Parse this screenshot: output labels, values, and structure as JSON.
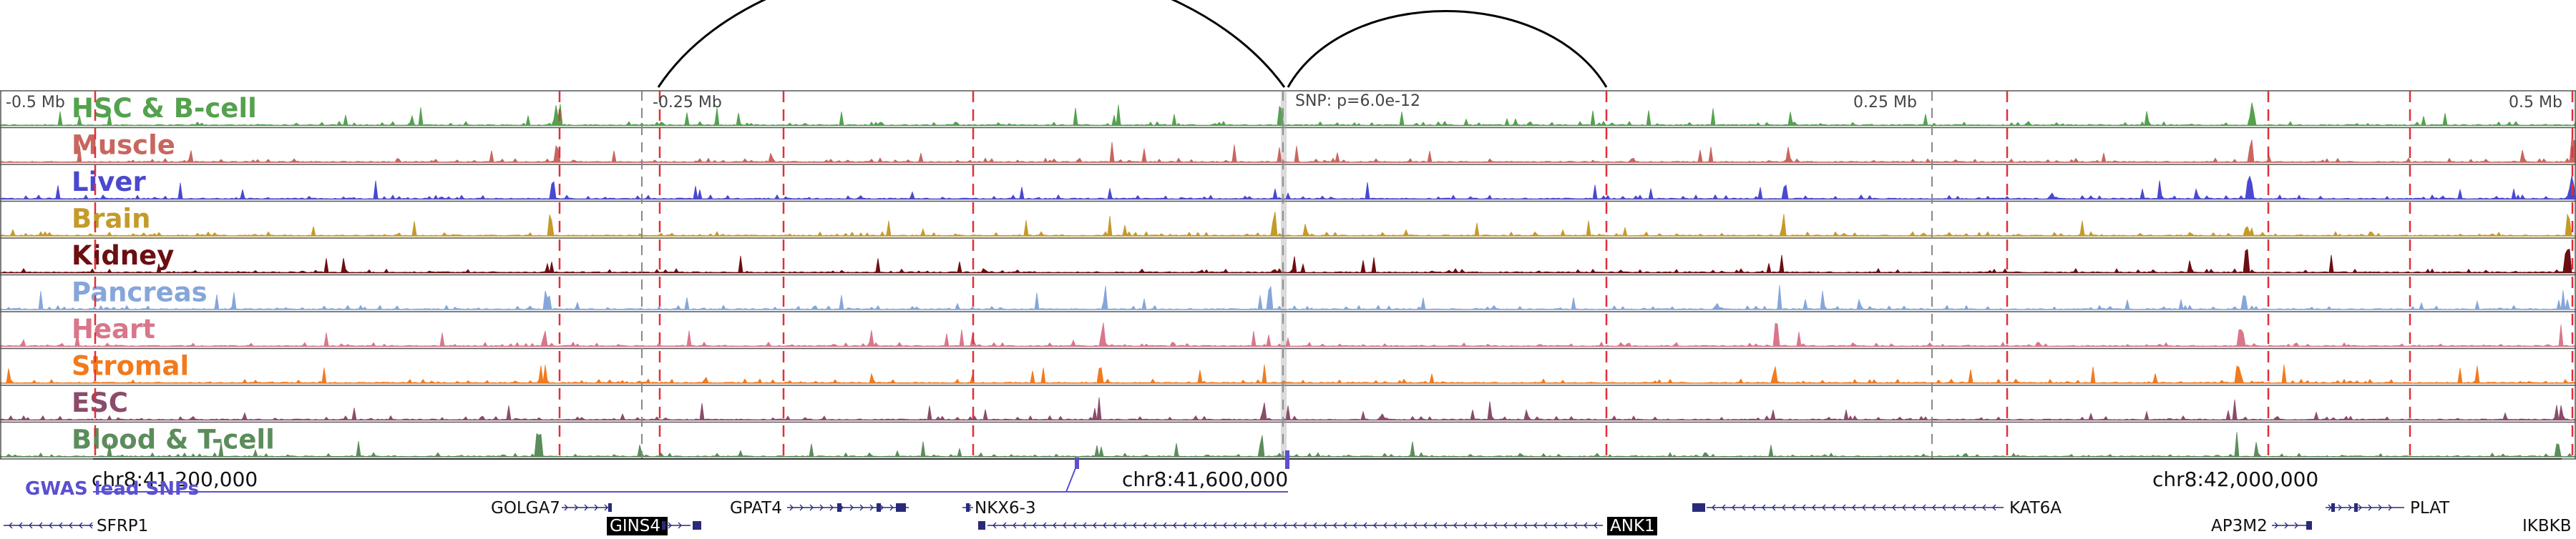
{
  "scale": {
    "labels": [
      "-0.5 Mb",
      "-0.25 Mb",
      "0.25 Mb",
      "0.5 Mb"
    ],
    "snp_label": "SNP: p=6.0e-12"
  },
  "tracks": [
    {
      "name": "HSC & B-cell",
      "color": "#54a14e"
    },
    {
      "name": "Muscle",
      "color": "#c8665e"
    },
    {
      "name": "Liver",
      "color": "#4a48d0"
    },
    {
      "name": "Brain",
      "color": "#c49a2a"
    },
    {
      "name": "Kidney",
      "color": "#6b0f12"
    },
    {
      "name": "Pancreas",
      "color": "#86a6da"
    },
    {
      "name": "Heart",
      "color": "#d9768a"
    },
    {
      "name": "Stromal",
      "color": "#f27a1e"
    },
    {
      "name": "ESC",
      "color": "#8a4c6a"
    },
    {
      "name": "Blood & T-cell",
      "color": "#5c8c5c"
    }
  ],
  "coordinates": {
    "ticks": [
      "chr8:41,200,000",
      "chr8:41,600,000",
      "chr8:42,000,000"
    ]
  },
  "gwas": {
    "label": "GWAS lead SNPs",
    "color": "#5a50d0"
  },
  "genes": {
    "row1": [
      "GOLGA7",
      "GPAT4",
      "NKX6-3",
      "KAT6A",
      "PLAT"
    ],
    "row2": [
      "SFRP1",
      "GINS4",
      "ANK1",
      "AP3M2",
      "IKBKB"
    ]
  },
  "colors": {
    "highlight_line": "#e0303a",
    "axis": "#555555",
    "gene": "#2a2a7a",
    "arc": "#000000"
  }
}
